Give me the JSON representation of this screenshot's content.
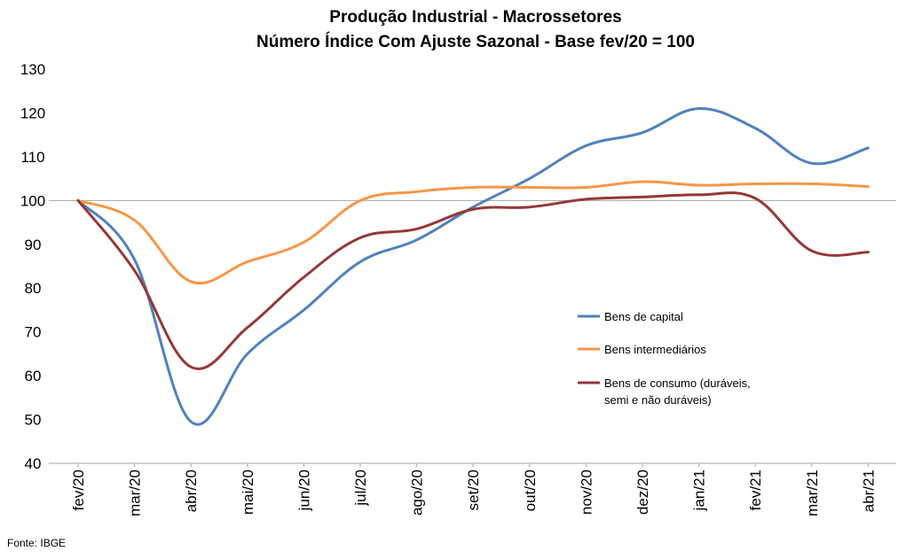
{
  "chart_data": {
    "type": "line",
    "title": "Produção Industrial - Macrossetores",
    "subtitle": "Número Índice Com Ajuste Sazonal - Base fev/20 = 100",
    "xlabel": "",
    "ylabel": "",
    "ylim": [
      40,
      130
    ],
    "yticks": [
      40,
      50,
      60,
      70,
      80,
      90,
      100,
      110,
      120,
      130
    ],
    "reference_line": 100,
    "grid": false,
    "legend_position": "right-center",
    "categories": [
      "fev/20",
      "mar/20",
      "abr/20",
      "mai/20",
      "jun/20",
      "jul/20",
      "ago/20",
      "set/20",
      "out/20",
      "nov/20",
      "dez/20",
      "jan/21",
      "fev/21",
      "mar/21",
      "abr/21"
    ],
    "series": [
      {
        "name": "Bens de capital",
        "color": "#4f81bd",
        "values": [
          100,
          86.5,
          49.5,
          65,
          75,
          86,
          91,
          98.5,
          105,
          112.5,
          115.5,
          121,
          116.5,
          108.5,
          112
        ]
      },
      {
        "name": "Bens intermediários",
        "color": "#f79646",
        "values": [
          100,
          95.5,
          81.5,
          86,
          90.5,
          100,
          102,
          103,
          103,
          103,
          104.3,
          103.5,
          103.8,
          103.8,
          103.2
        ]
      },
      {
        "name_lines": [
          "Bens de consumo (duráveis,",
          "semi e não duráveis)"
        ],
        "color": "#953735",
        "values": [
          100,
          84,
          62,
          71,
          82.5,
          91.5,
          93.5,
          98,
          98.5,
          100.3,
          100.8,
          101.3,
          100.5,
          88.5,
          88.2
        ]
      }
    ]
  },
  "source": "Fonte: IBGE"
}
